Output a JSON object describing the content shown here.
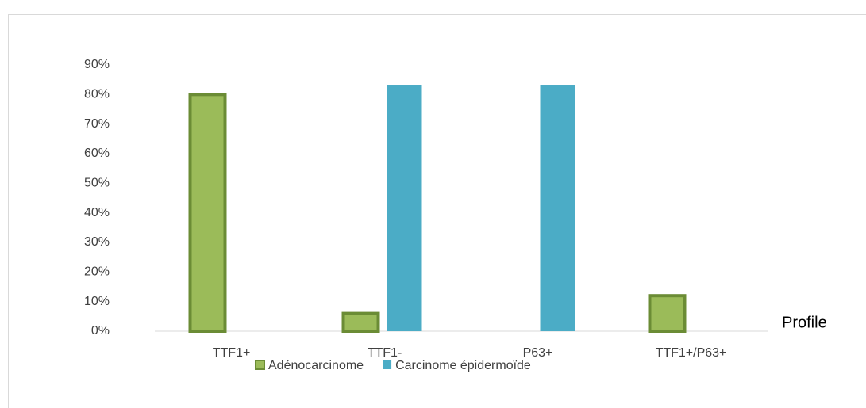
{
  "chart_data": {
    "type": "bar",
    "x_label": "Profile",
    "categories": [
      "TTF1+",
      "TTF1-",
      "P63+",
      "TTF1+/P63+"
    ],
    "series": [
      {
        "name": "Adénocarcinome",
        "color": "#9bbb59",
        "border": "#6b8c35",
        "values": [
          80,
          6,
          0,
          12
        ]
      },
      {
        "name": "Carcinome épidermoïde",
        "color": "#4bacc6",
        "values": [
          0,
          83.3,
          83.3,
          0
        ]
      }
    ],
    "ylim": [
      0,
      90
    ],
    "yticks": [
      {
        "value": 0,
        "label": "0%"
      },
      {
        "value": 10,
        "label": "10%"
      },
      {
        "value": 20,
        "label": "20%"
      },
      {
        "value": 30,
        "label": "30%"
      },
      {
        "value": 40,
        "label": "40%"
      },
      {
        "value": 50,
        "label": "50%"
      },
      {
        "value": 60,
        "label": "60%"
      },
      {
        "value": 70,
        "label": "70%"
      },
      {
        "value": 80,
        "label": "80%"
      },
      {
        "value": 90,
        "label": "90%"
      }
    ],
    "legend": "bottom"
  }
}
